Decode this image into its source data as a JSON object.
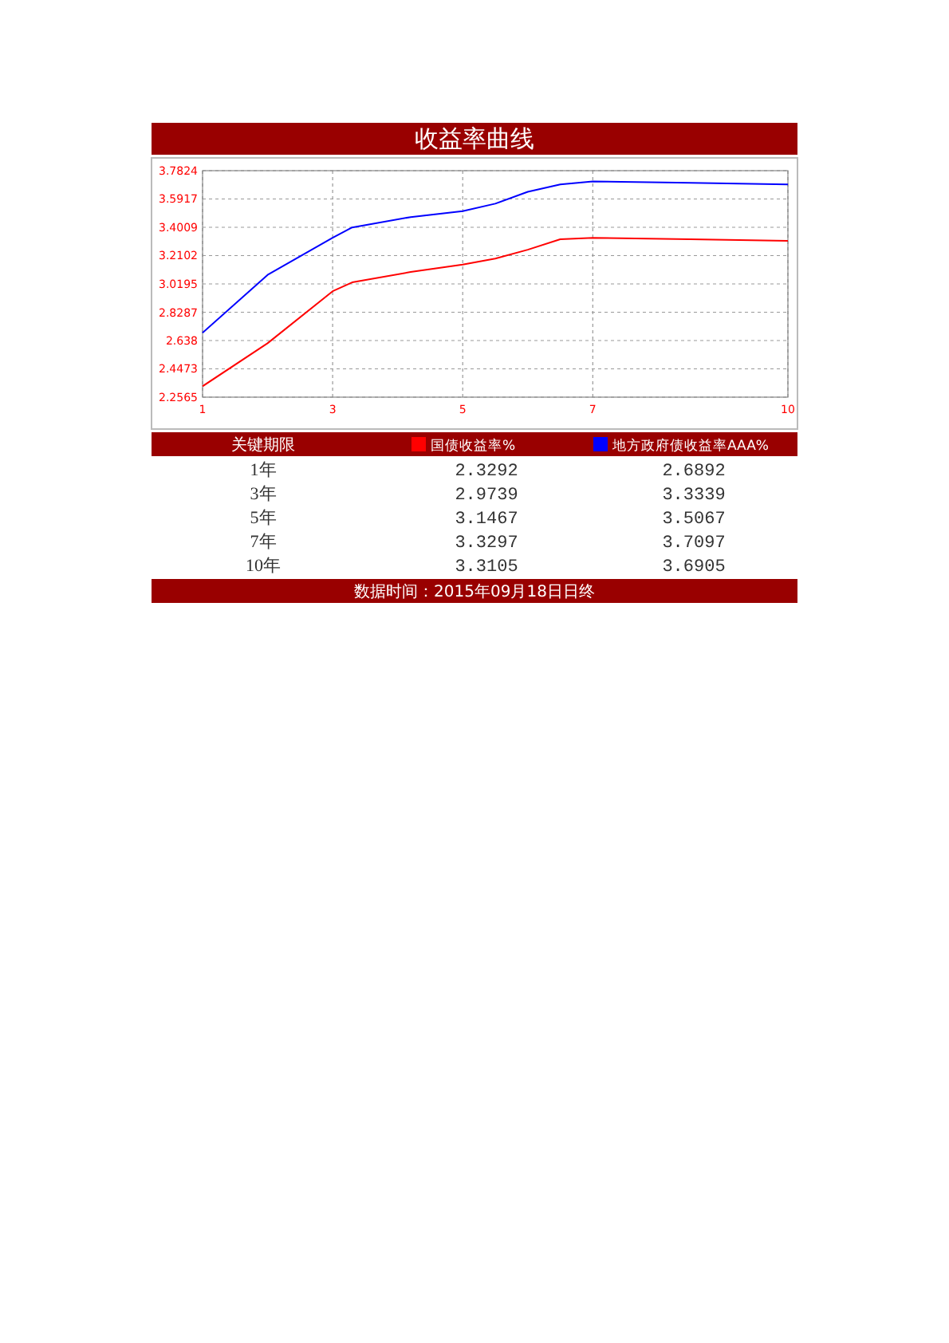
{
  "chart_data": [
    {
      "type": "line",
      "title": "收益率曲线",
      "x": [
        1,
        2,
        3,
        3.3,
        4.2,
        5,
        5.5,
        6,
        6.5,
        7,
        8.5,
        10
      ],
      "series": [
        {
          "name": "国债收益率%",
          "color": "#ff0000",
          "values": [
            2.33,
            2.62,
            2.97,
            3.03,
            3.1,
            3.15,
            3.19,
            3.25,
            3.32,
            3.33,
            3.32,
            3.31
          ]
        },
        {
          "name": "地方政府债收益率AAA%",
          "color": "#0000ff",
          "values": [
            2.69,
            3.08,
            3.33,
            3.4,
            3.47,
            3.51,
            3.56,
            3.64,
            3.69,
            3.71,
            3.7,
            3.69
          ]
        }
      ],
      "xlim": [
        1,
        10
      ],
      "xticks": [
        1,
        3,
        5,
        7,
        10
      ],
      "ylim": [
        2.2565,
        3.7824
      ],
      "yticks": [
        2.2565,
        2.4473,
        2.638,
        {
          "value": 2.8287,
          "label": "2.8287"
        },
        3.0195,
        3.2102,
        3.4009,
        3.5917,
        3.7824
      ],
      "grid": true,
      "legend": "bottom",
      "line_style": "solid",
      "marker": "none"
    },
    {
      "type": "other",
      "annotations": [
        "关键期限",
        "1年",
        "2.3292",
        "2.6892",
        "3年",
        "2.9739",
        "3.3339",
        "5年",
        "3.1467",
        "3.5067",
        "7年",
        "3.3297",
        "3.7097",
        "10年",
        "3.3105",
        "3.6905",
        "数据时间：2015年09月18日日终"
      ]
    }
  ]
}
